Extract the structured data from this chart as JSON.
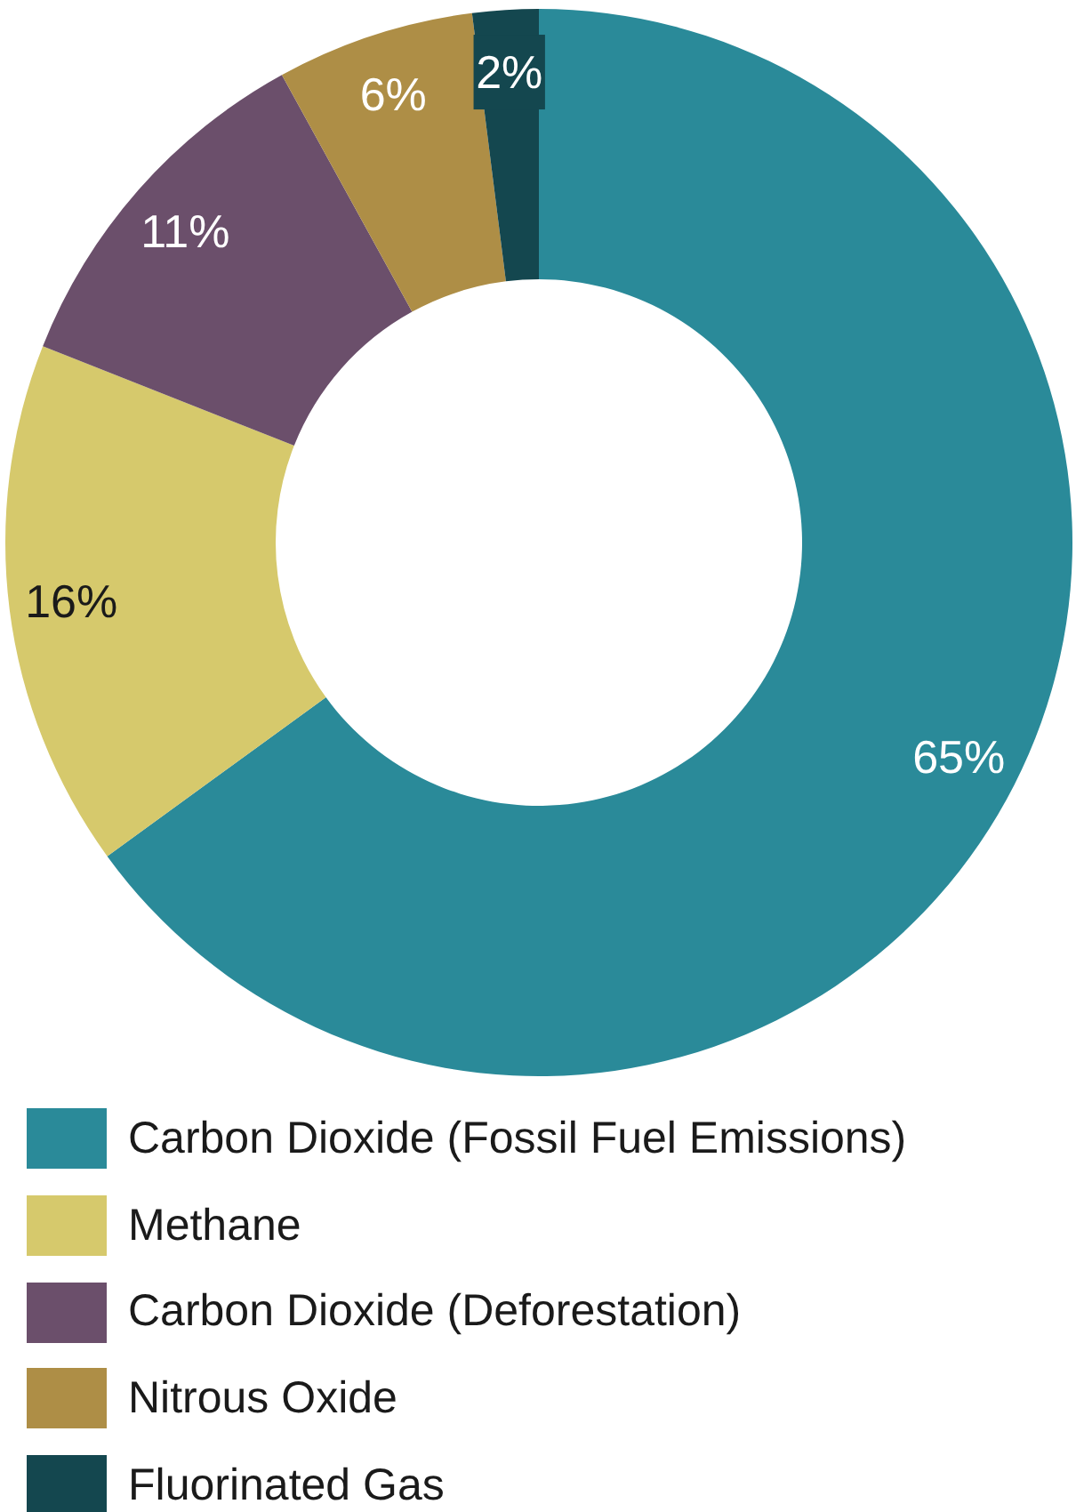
{
  "chart_data": {
    "type": "donut",
    "categories": [
      "Carbon Dioxide (Fossil Fuel Emissions)",
      "Methane",
      "Carbon Dioxide (Deforestation)",
      "Nitrous Oxide",
      "Fluorinated Gas"
    ],
    "values": [
      65,
      16,
      11,
      6,
      2
    ],
    "value_labels": [
      "65%",
      "16%",
      "11%",
      "6%",
      "2%"
    ],
    "colors": [
      "#2a8a99",
      "#d6c96c",
      "#6b4f6b",
      "#ae8e46",
      "#14474f"
    ],
    "legend": "bottom"
  }
}
